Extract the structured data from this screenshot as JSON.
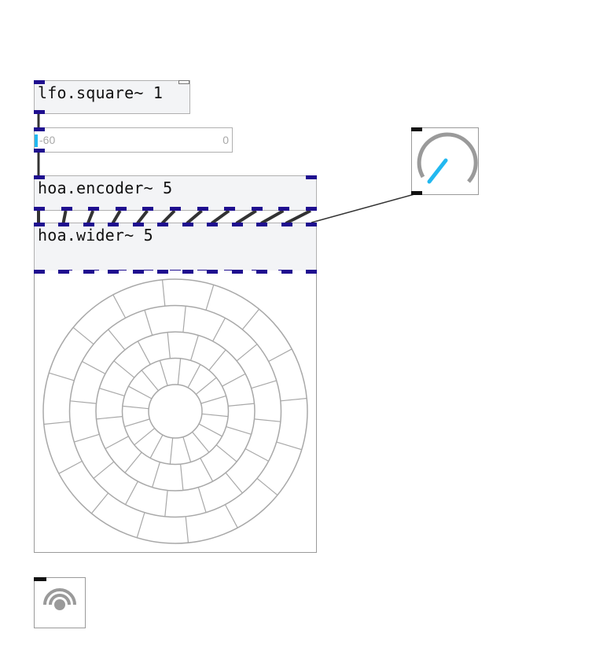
{
  "patch": {
    "lfo": {
      "text": "lfo.square~ 1"
    },
    "slider": {
      "min_label": "-60",
      "max_label": "0",
      "level": 0.0
    },
    "encoder": {
      "text": "hoa.encoder~ 5",
      "outlets": 11
    },
    "wider": {
      "text": "hoa.wider~ 5",
      "inlets": 12,
      "outlets": 11
    },
    "scope": {
      "rings": 5,
      "spokes_per_ring": 16
    },
    "knob": {
      "value": 0.55
    },
    "dac": {
      "icon": "speaker-icon"
    }
  },
  "colors": {
    "port": "#1f0f8f",
    "wire": "#333333",
    "accent": "#22b8f0",
    "outline": "#a8a8a8"
  }
}
